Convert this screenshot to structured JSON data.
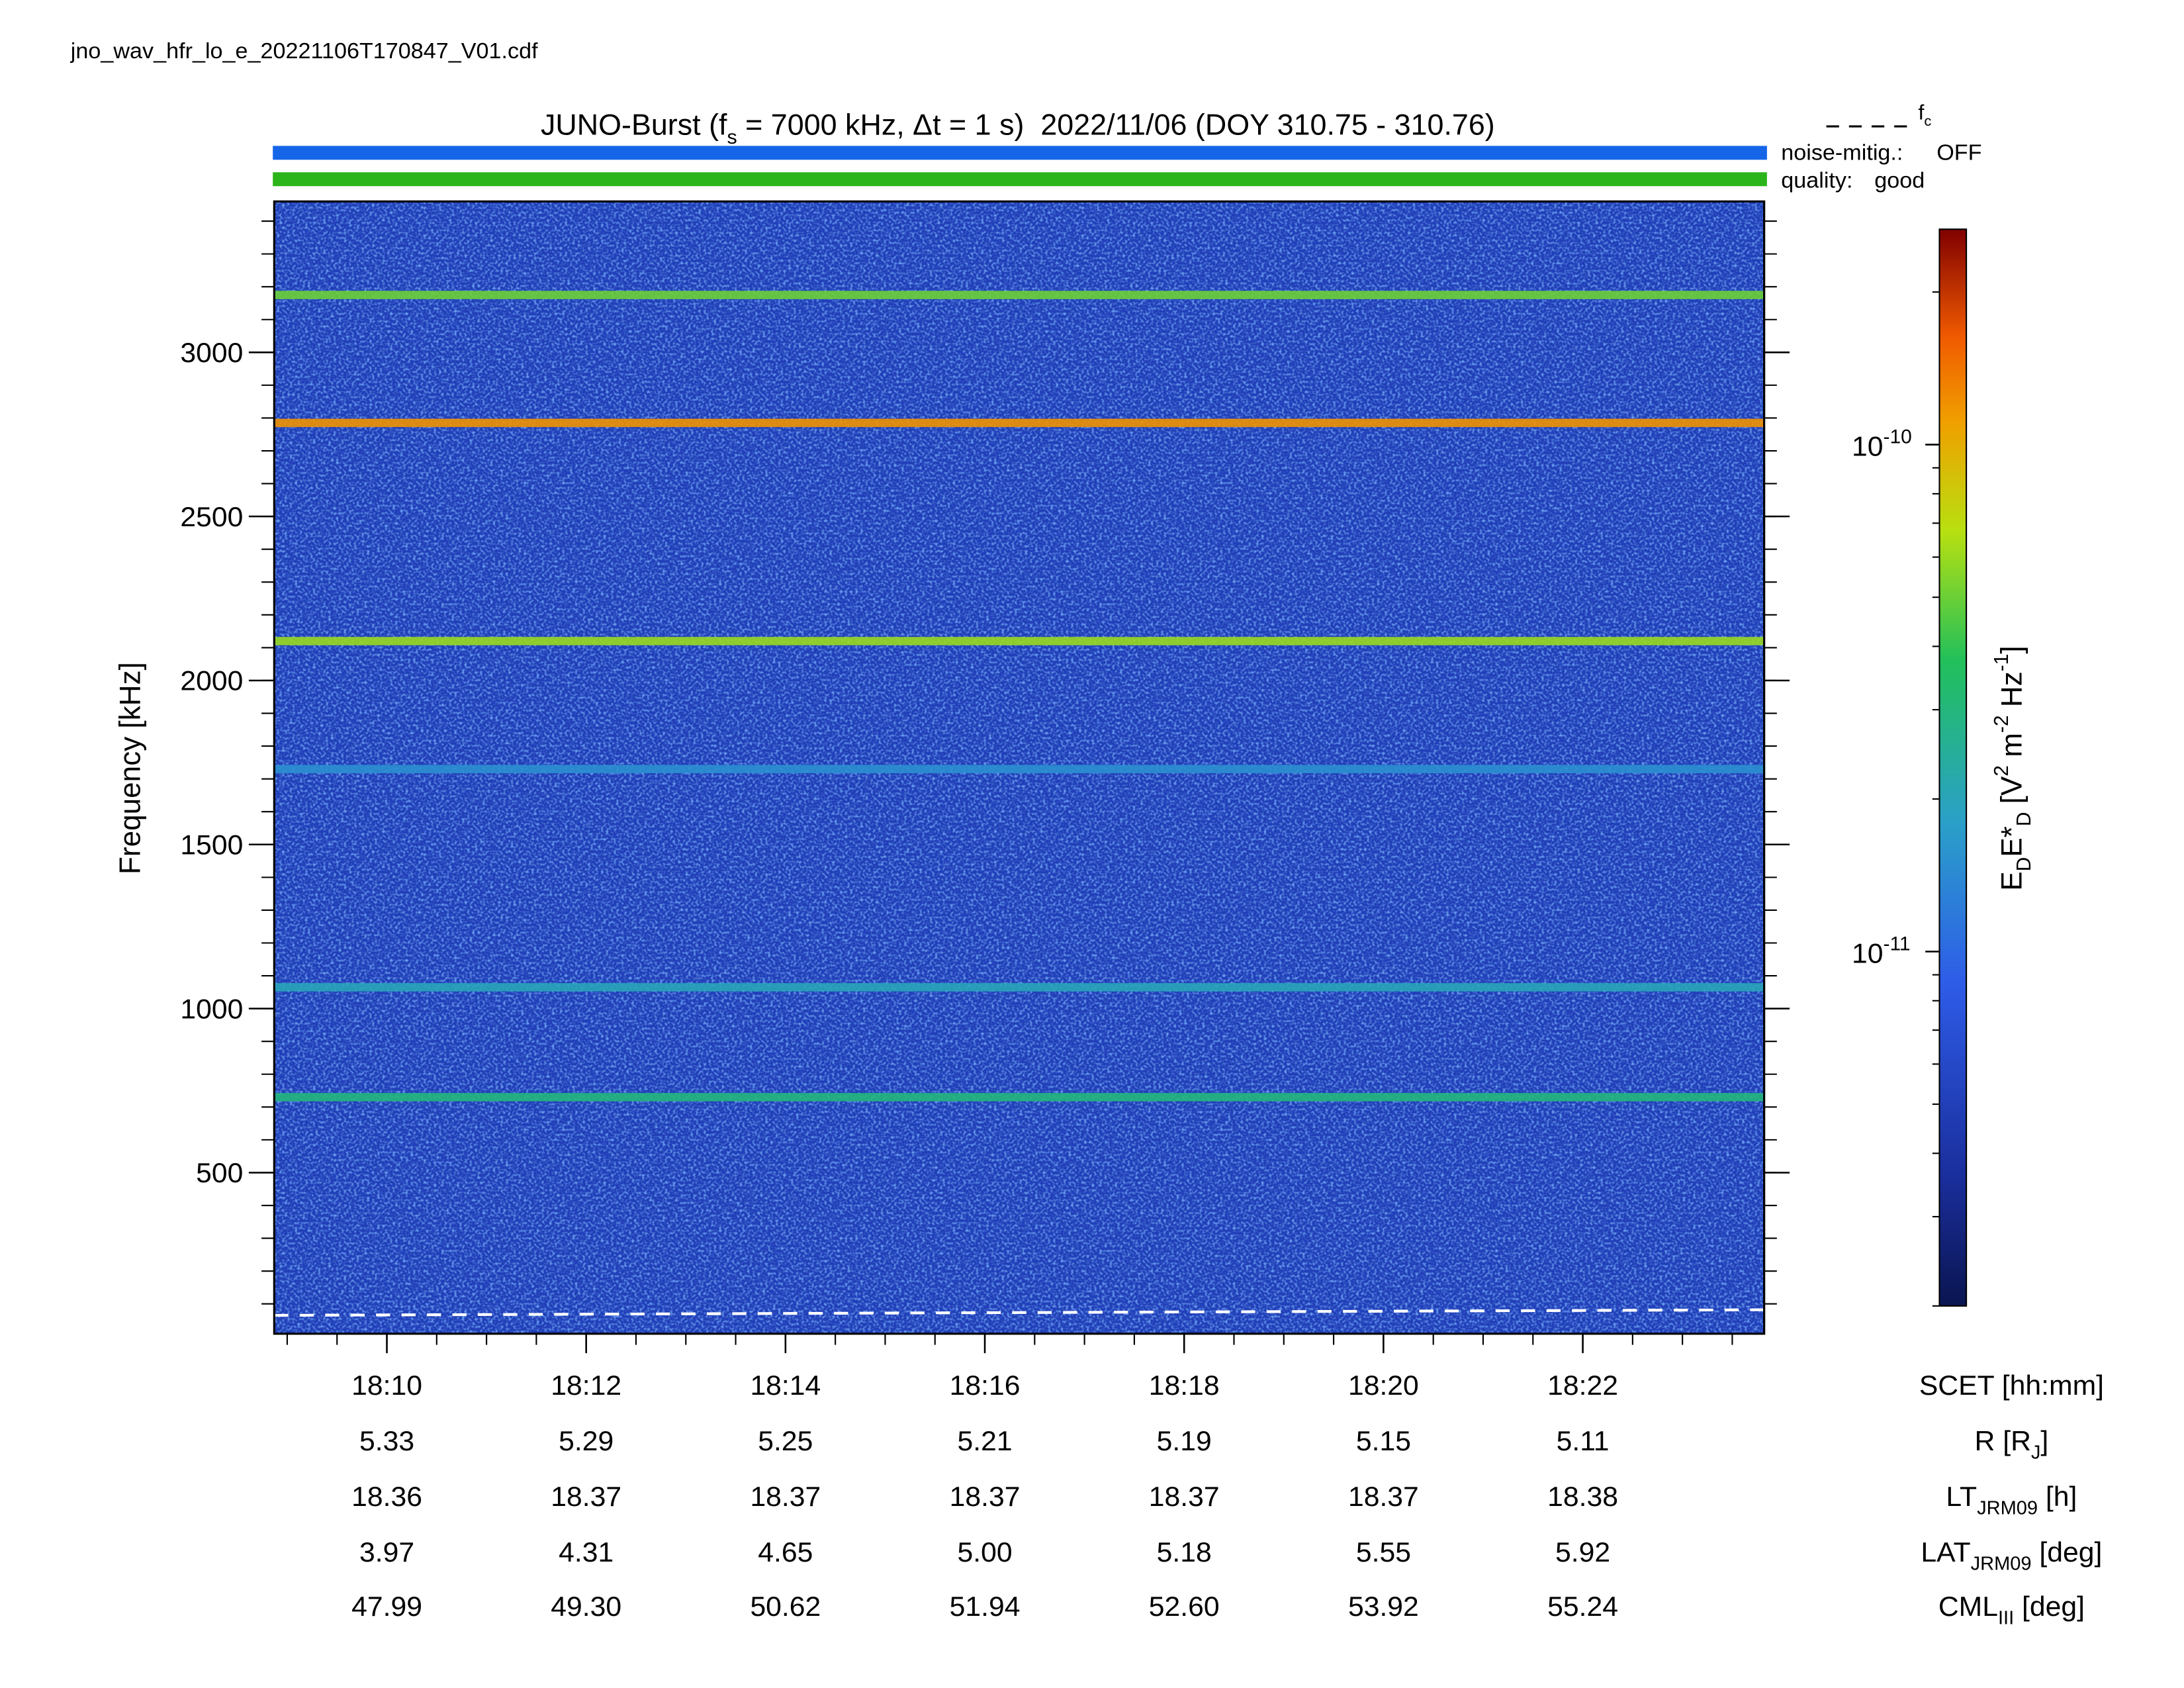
{
  "filename": "jno_wav_hfr_lo_e_20221106T170847_V01.cdf",
  "chart_data": {
    "type": "spectrogram",
    "title": [
      "JUNO-Burst (f",
      "s",
      " = 7000 kHz, Δt = 1 s)  2022/11/06 (DOY 310.75 - 310.76)"
    ],
    "ylabel": "Frequency [kHz]",
    "ylim": [
      9,
      3460
    ],
    "yticks": [
      500,
      1000,
      1500,
      2000,
      2500,
      3000
    ],
    "xlim": [
      1088.87,
      1103.82
    ],
    "xticks": [
      {
        "value": 1090,
        "label": "18:10"
      },
      {
        "value": 1092,
        "label": "18:12"
      },
      {
        "value": 1094,
        "label": "18:14"
      },
      {
        "value": 1096,
        "label": "18:16"
      },
      {
        "value": 1098,
        "label": "18:18"
      },
      {
        "value": 1100,
        "label": "18:20"
      },
      {
        "value": 1102,
        "label": "18:22"
      }
    ],
    "xlabel": [
      "SCET [hh:mm]"
    ],
    "ephemeris": [
      {
        "label": [
          "R [R",
          "J",
          "]"
        ],
        "values": [
          "5.33",
          "5.29",
          "5.25",
          "5.21",
          "5.19",
          "5.15",
          "5.11"
        ]
      },
      {
        "label": [
          "LT",
          "JRM09",
          " [h]"
        ],
        "values": [
          "18.36",
          "18.37",
          "18.37",
          "18.37",
          "18.37",
          "18.37",
          "18.38"
        ]
      },
      {
        "label": [
          "LAT",
          "JRM09",
          " [deg]"
        ],
        "values": [
          "3.97",
          "4.31",
          "4.65",
          "5.00",
          "5.18",
          "5.55",
          "5.92"
        ]
      },
      {
        "label": [
          "CML",
          "III",
          " [deg]"
        ],
        "values": [
          "47.99",
          "49.30",
          "50.62",
          "51.94",
          "52.60",
          "53.92",
          "55.24"
        ]
      }
    ],
    "background": 5e-12,
    "bands": {
      "frequencies": [
        3175,
        2785,
        2120,
        1730,
        1065,
        730
      ],
      "values": [
        5e-11,
        1.2e-10,
        6e-11,
        1.5e-11,
        2e-11,
        3e-11
      ]
    },
    "fc": {
      "name": [
        "f",
        "c"
      ],
      "x": [
        1088.87,
        1103.82
      ],
      "values": [
        65,
        82
      ],
      "color": "#ffffff"
    },
    "status": {
      "noise_label": "noise-mitig.:",
      "noise_value": "OFF",
      "noise_color": "#1a5ff0",
      "quality_label": "quality:",
      "quality_value": "good",
      "quality_color": "#2db820"
    },
    "colorbar": {
      "label": [
        "E",
        "D",
        "E*",
        "D",
        " [V",
        "2",
        " m",
        "-2",
        " Hz",
        "-1",
        "]"
      ],
      "clim": [
        2e-12,
        2.66e-10
      ],
      "log": true,
      "ticks": [
        {
          "value": 1e-10,
          "label": "10",
          "exponent": "-10"
        },
        {
          "value": 1e-11,
          "label": "10",
          "exponent": "-11"
        }
      ]
    }
  }
}
